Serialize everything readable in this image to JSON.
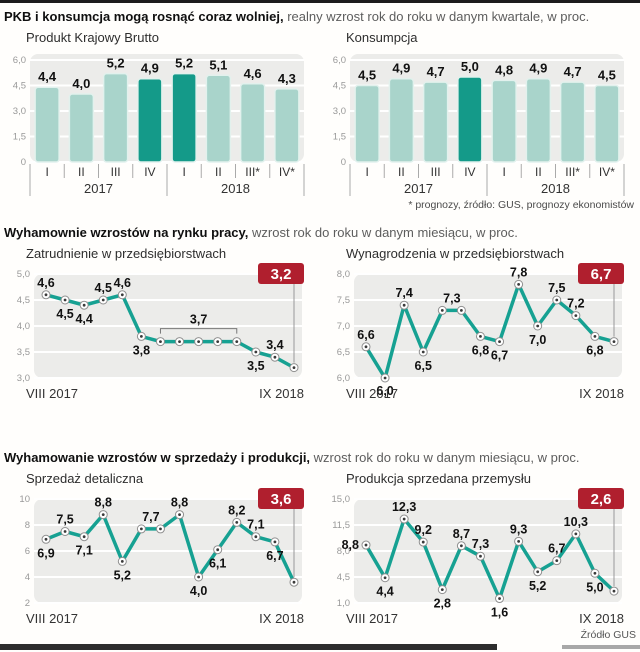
{
  "page": {
    "header": {
      "bold": "PKB i konsumcja mogą rosnąć coraz wolniej,",
      "rest": " realny wzrost rok do roku w danym kwartale, w proc."
    },
    "section_labor": {
      "bold": "Wyhamownie wzrostów na rynku pracy,",
      "rest": " wzrost rok do roku w danym miesiącu, w proc."
    },
    "section_sales": {
      "bold": "Wyhamowanie wzrostów w sprzedaży i produkcji,",
      "rest": " wzrost rok do roku w danym miesiącu, w proc."
    },
    "footnote": "* prognozy, źródło: GUS, prognozy ekonomistów",
    "source": "Źródło GUS"
  },
  "colors": {
    "bar_light": "#a9d4cb",
    "bar_dark": "#149a89",
    "bar_stroke": "#e2f1ed",
    "line": "#16a192",
    "marker_stroke": "#8f8f8f",
    "marker_dot": "#3a3a3a",
    "badge_red": "#b01f2e",
    "badge_text": "#ffffff",
    "panel": "#ececea",
    "grid": "#ffffff",
    "tick_text": "#999999",
    "axis_text": "#333333",
    "value_text": "#111111",
    "separator": "#aaaaaa",
    "bracket": "#777777",
    "connector": "#999999"
  },
  "chart_data": [
    {
      "type": "bar",
      "title": "Produkt Krajowy Brutto",
      "categories": [
        "I",
        "II",
        "III",
        "IV",
        "I",
        "II",
        "III*",
        "IV*"
      ],
      "values": [
        4.4,
        4.0,
        5.2,
        4.9,
        5.2,
        5.1,
        4.6,
        4.3
      ],
      "value_labels": [
        "4,4",
        "4,0",
        "5,2",
        "4,9",
        "5,2",
        "5,1",
        "4,6",
        "4,3"
      ],
      "highlighted": [
        3,
        4
      ],
      "year_groups": [
        {
          "label": "2017",
          "span": 4
        },
        {
          "label": "2018",
          "span": 4
        }
      ],
      "ylim": [
        0,
        6
      ],
      "yticks": [
        "6,0",
        "4,5",
        "3,0",
        "1,5",
        "0"
      ],
      "ytick_values": [
        6,
        4.5,
        3,
        1.5,
        0
      ],
      "grid": true,
      "legend": "none"
    },
    {
      "type": "bar",
      "title": "Konsumpcja",
      "categories": [
        "I",
        "II",
        "III",
        "IV",
        "I",
        "II",
        "III*",
        "IV*"
      ],
      "values": [
        4.5,
        4.9,
        4.7,
        5.0,
        4.8,
        4.9,
        4.7,
        4.5
      ],
      "value_labels": [
        "4,5",
        "4,9",
        "4,7",
        "5,0",
        "4,8",
        "4,9",
        "4,7",
        "4,5"
      ],
      "highlighted": [
        3
      ],
      "year_groups": [
        {
          "label": "2017",
          "span": 4
        },
        {
          "label": "2018",
          "span": 4
        }
      ],
      "ylim": [
        0,
        6
      ],
      "yticks": [
        "6,0",
        "4,5",
        "3,0",
        "1,5",
        "0"
      ],
      "ytick_values": [
        6,
        4.5,
        3,
        1.5,
        0
      ],
      "grid": true,
      "legend": "none"
    },
    {
      "type": "line",
      "title": "Zatrudnienie w przedsiębiorstwach",
      "badge": "3,2",
      "x_start_label": "VIII 2017",
      "x_end_label": "IX 2018",
      "values": [
        4.6,
        4.5,
        4.4,
        4.5,
        4.6,
        3.8,
        3.7,
        3.7,
        3.7,
        3.7,
        3.7,
        3.5,
        3.4,
        3.2
      ],
      "labels": [
        "4,6",
        "4,5",
        "4,4",
        "4,5",
        "4,6",
        "3,8",
        "",
        "",
        "",
        "",
        "",
        "3,5",
        "3,4",
        ""
      ],
      "label_pos": [
        "a",
        "b",
        "b",
        "a",
        "a",
        "b",
        "",
        "",
        "",
        "",
        "",
        "b",
        "a",
        ""
      ],
      "bracket": {
        "from": 6,
        "to": 10,
        "label": "3,7"
      },
      "ylim": [
        3,
        5
      ],
      "yticks": [
        "5,0",
        "4,5",
        "4,0",
        "3,5",
        "3,0"
      ],
      "ytick_values": [
        5,
        4.5,
        4,
        3.5,
        3
      ],
      "grid": true,
      "legend": "none"
    },
    {
      "type": "line",
      "title": "Wynagrodzenia w przedsiębiorstwach",
      "badge": "6,7",
      "x_start_label": "VIII 2017",
      "x_end_label": "IX 2018",
      "values": [
        6.6,
        6.0,
        7.4,
        6.5,
        7.3,
        7.3,
        6.8,
        6.7,
        7.8,
        7.0,
        7.5,
        7.2,
        6.8,
        6.7
      ],
      "labels": [
        "6,6",
        "6,0",
        "7,4",
        "6,5",
        "7,3",
        "",
        "6,8",
        "6,7",
        "7,8",
        "7,0",
        "7,5",
        "7,2",
        "6,8",
        ""
      ],
      "label_pos": [
        "a",
        "b",
        "a",
        "b",
        "a",
        "",
        "b",
        "b",
        "a",
        "b",
        "a",
        "a",
        "b",
        ""
      ],
      "ylim": [
        6,
        8
      ],
      "yticks": [
        "8,0",
        "7,5",
        "7,0",
        "6,5",
        "6,0"
      ],
      "ytick_values": [
        8,
        7.5,
        7,
        6.5,
        6
      ],
      "grid": true,
      "legend": "none"
    },
    {
      "type": "line",
      "title": "Sprzedaż detaliczna",
      "badge": "3,6",
      "x_start_label": "VIII 2017",
      "x_end_label": "IX 2018",
      "values": [
        6.9,
        7.5,
        7.1,
        8.8,
        5.2,
        7.7,
        7.7,
        8.8,
        4.0,
        6.1,
        8.2,
        7.1,
        6.7,
        3.6
      ],
      "labels": [
        "6,9",
        "7,5",
        "7,1",
        "8,8",
        "5,2",
        "7,7",
        "",
        "8,8",
        "4,0",
        "6,1",
        "8,2",
        "7,1",
        "6,7",
        ""
      ],
      "label_pos": [
        "b",
        "a",
        "b",
        "a",
        "b",
        "a",
        "",
        "a",
        "b",
        "b",
        "a",
        "a",
        "b",
        ""
      ],
      "ylim": [
        2,
        10
      ],
      "yticks": [
        "10",
        "8",
        "6",
        "4",
        "2"
      ],
      "ytick_values": [
        10,
        8,
        6,
        4,
        2
      ],
      "grid": true,
      "legend": "none"
    },
    {
      "type": "line",
      "title": "Produkcja sprzedana przemysłu",
      "badge": "2,6",
      "x_start_label": "VIII 2017",
      "x_end_label": "IX 2018",
      "values": [
        8.8,
        4.4,
        12.3,
        9.2,
        2.8,
        8.7,
        7.3,
        1.6,
        9.3,
        5.2,
        6.7,
        10.3,
        5.0,
        2.6
      ],
      "labels": [
        "8,8",
        "4,4",
        "12,3",
        "9,2",
        "2,8",
        "8,7",
        "7,3",
        "1,6",
        "9,3",
        "5,2",
        "6,7",
        "10,3",
        "5,0",
        ""
      ],
      "label_pos": [
        "l",
        "b",
        "a",
        "a",
        "b",
        "a",
        "a",
        "b",
        "a",
        "b",
        "a",
        "a",
        "b",
        ""
      ],
      "ylim": [
        1,
        15
      ],
      "yticks": [
        "15,0",
        "11,5",
        "8,0",
        "4,5",
        "1,0"
      ],
      "ytick_values": [
        15,
        11.5,
        8,
        4.5,
        1
      ],
      "grid": true,
      "legend": "none"
    }
  ]
}
